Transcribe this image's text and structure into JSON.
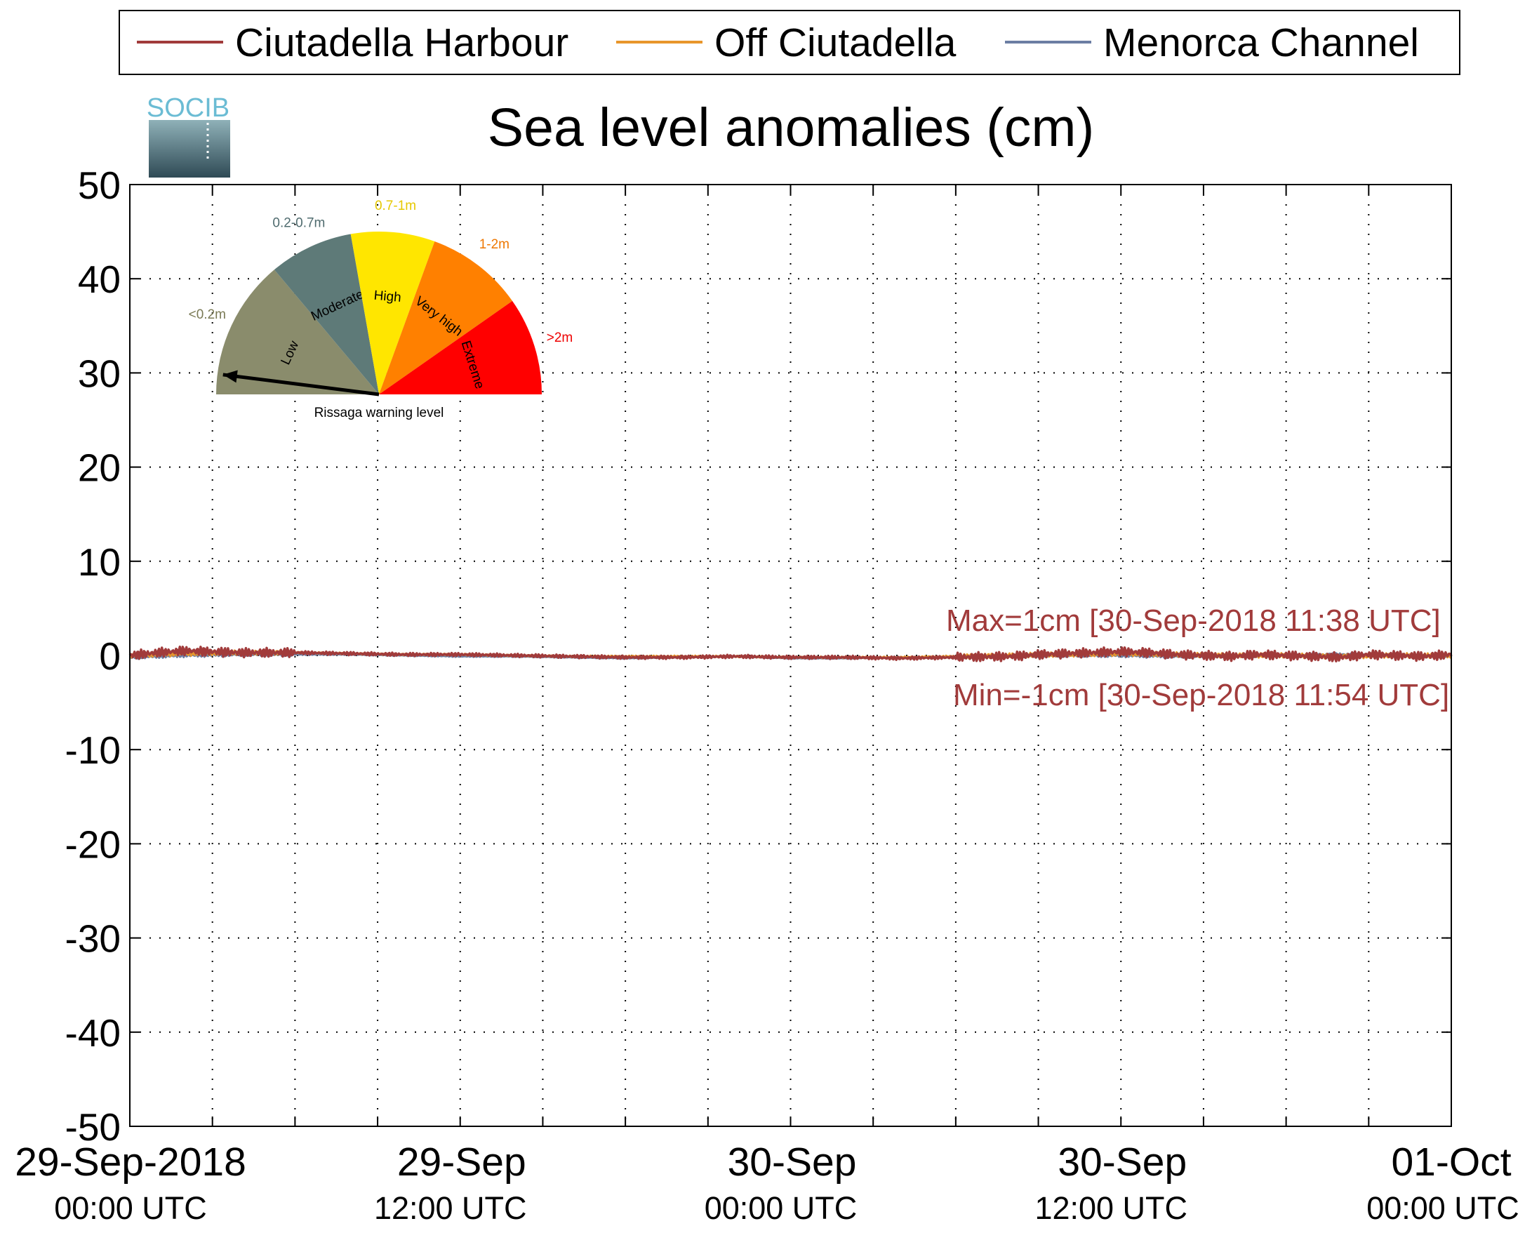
{
  "chart_data": {
    "type": "line",
    "title": "Sea level anomalies (cm)",
    "ylim": [
      -50,
      50
    ],
    "yticks": [
      50,
      40,
      30,
      20,
      10,
      0,
      -10,
      -20,
      -30,
      -40,
      -50
    ],
    "xrange": [
      "2018-09-29 00:00",
      "2018-10-01 00:00"
    ],
    "xticks": [
      {
        "date": "29-Sep-2018",
        "time": "00:00 UTC",
        "hour": 0
      },
      {
        "date": "29-Sep",
        "time": "12:00 UTC",
        "hour": 12
      },
      {
        "date": "30-Sep",
        "time": "00:00 UTC",
        "hour": 24
      },
      {
        "date": "30-Sep",
        "time": "12:00 UTC",
        "hour": 36
      },
      {
        "date": "01-Oct",
        "time": "00:00 UTC",
        "hour": 48
      }
    ],
    "grid": true,
    "legend_position": "top",
    "series": [
      {
        "name": "Ciutadella Harbour",
        "color": "#a13b3b",
        "x": [
          0,
          1,
          2,
          3,
          4,
          6,
          8,
          10,
          12,
          14,
          16,
          18,
          20,
          22,
          24,
          26,
          28,
          30,
          32,
          33,
          34,
          35,
          36,
          37,
          38,
          39,
          40,
          41,
          42,
          43,
          44,
          45,
          46,
          47,
          48
        ],
        "y": [
          0.0,
          0.3,
          0.5,
          0.4,
          0.3,
          0.3,
          0.2,
          0.1,
          0.1,
          0.0,
          -0.1,
          -0.2,
          -0.2,
          -0.1,
          -0.2,
          -0.2,
          -0.3,
          -0.2,
          -0.1,
          0.1,
          0.2,
          0.3,
          0.4,
          0.3,
          0.1,
          0.0,
          -0.1,
          0.1,
          0.0,
          -0.1,
          -0.2,
          0.1,
          0.0,
          -0.1,
          0.1
        ],
        "noise": 0.5
      },
      {
        "name": "Off Ciutadella",
        "color": "#e8962b",
        "x": [
          0,
          2,
          4,
          6,
          8,
          10,
          12,
          14,
          16,
          18,
          20,
          22,
          24,
          26,
          28,
          30,
          32,
          34,
          36,
          38,
          40,
          42,
          44,
          46,
          48
        ],
        "y": [
          0.0,
          0.2,
          0.3,
          0.3,
          0.2,
          0.1,
          0.1,
          0.0,
          -0.1,
          -0.1,
          -0.1,
          -0.1,
          -0.2,
          -0.2,
          -0.2,
          -0.1,
          0.0,
          0.1,
          0.2,
          0.1,
          0.0,
          0.0,
          -0.1,
          0.0,
          0.0
        ],
        "noise": 0.25
      },
      {
        "name": "Menorca Channel",
        "color": "#6c7ea3",
        "x": [
          0,
          2,
          4,
          6,
          8,
          10,
          12,
          14,
          16,
          18,
          20,
          22,
          24,
          26,
          28,
          30,
          32,
          34,
          36,
          38,
          40,
          42,
          44,
          46,
          48
        ],
        "y": [
          -0.2,
          0.0,
          0.1,
          0.1,
          0.1,
          0.0,
          -0.1,
          -0.1,
          -0.2,
          -0.3,
          -0.2,
          -0.1,
          -0.3,
          -0.3,
          -0.2,
          -0.2,
          -0.1,
          0.0,
          0.0,
          -0.1,
          -0.1,
          0.0,
          0.1,
          0.0,
          -0.1
        ],
        "noise": 0.2
      }
    ],
    "annotations": {
      "max": "Max=1cm [30-Sep-2018 11:38 UTC]",
      "min": "Min=-1cm [30-Sep-2018 11:54 UTC]",
      "color": "#a13b3b"
    }
  },
  "logo": {
    "text": "SOCIB"
  },
  "gauge": {
    "caption": "Rissaga warning level",
    "segments": [
      {
        "label": "Low",
        "range": "<0.2m",
        "color": "#8a8c6c",
        "range_color": "#7a7a55"
      },
      {
        "label": "Moderate",
        "range": "0.2-0.7m",
        "color": "#5e7a78",
        "range_color": "#4f6b6e"
      },
      {
        "label": "High",
        "range": "0.7-1m",
        "color": "#ffe600",
        "range_color": "#e6c800"
      },
      {
        "label": "Very high",
        "range": "1-2m",
        "color": "#ff8000",
        "range_color": "#ee7700"
      },
      {
        "label": "Extreme",
        "range": ">2m",
        "color": "#ff0000",
        "range_color": "#ee0000"
      }
    ],
    "level_fraction": 0.04
  }
}
